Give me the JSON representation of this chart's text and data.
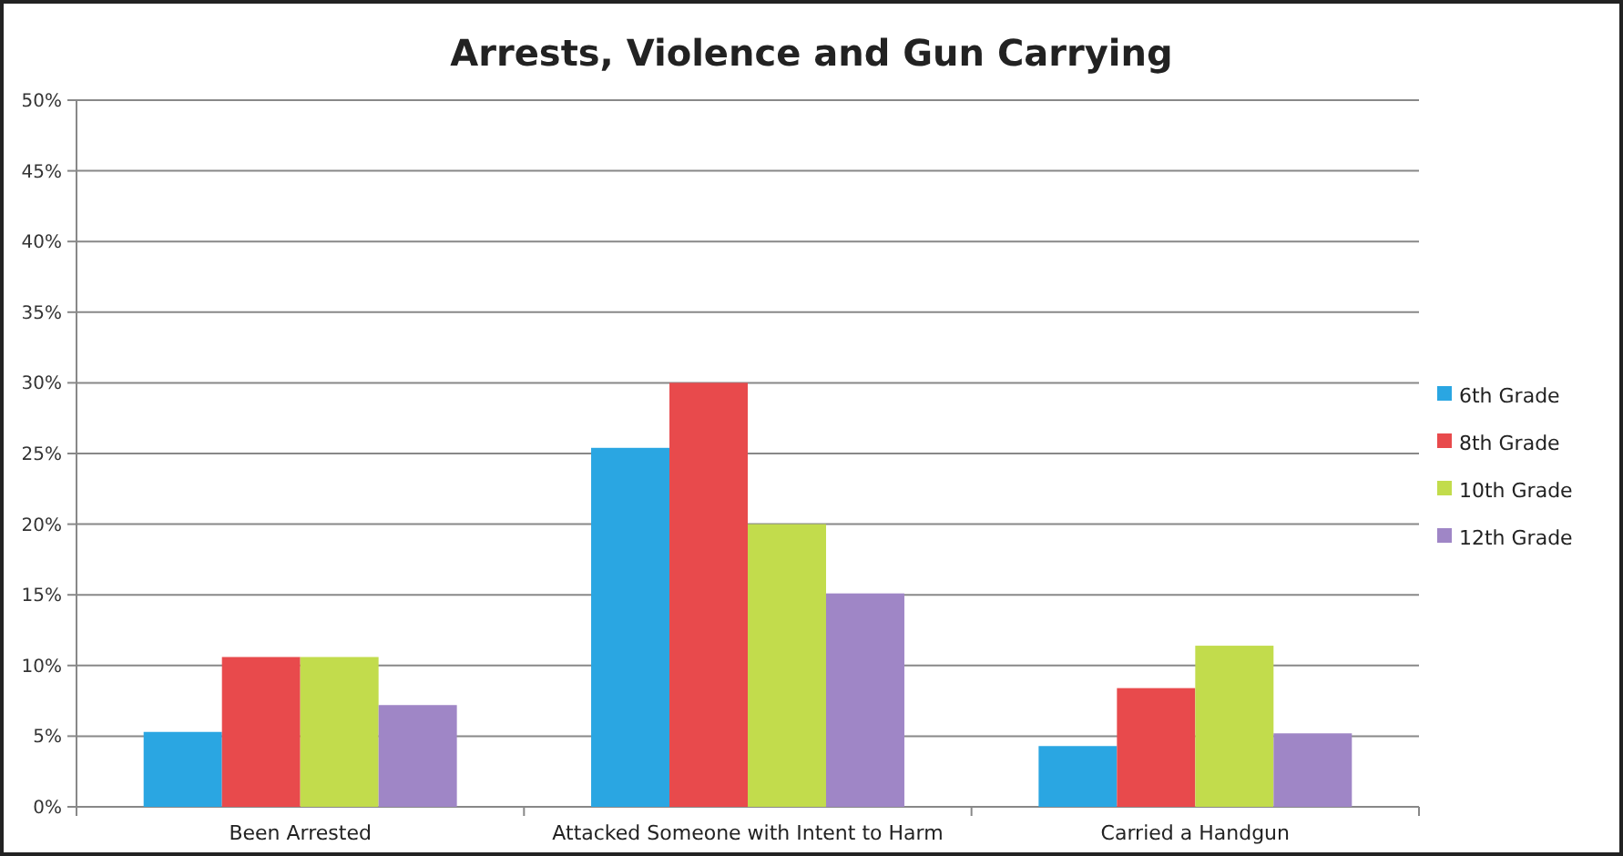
{
  "chart_data": {
    "type": "bar",
    "title": "Arrests, Violence and Gun Carrying",
    "categories": [
      "Been Arrested",
      "Attacked Someone with Intent to Harm",
      "Carried a Handgun"
    ],
    "series": [
      {
        "name": "6th Grade",
        "color": "#2aa6e2",
        "values": [
          5.3,
          25.4,
          4.3
        ]
      },
      {
        "name": "8th Grade",
        "color": "#e84a4c",
        "values": [
          10.6,
          30,
          8.4
        ]
      },
      {
        "name": "10th Grade",
        "color": "#c2dc4c",
        "values": [
          10.6,
          20,
          11.4
        ]
      },
      {
        "name": "12th Grade",
        "color": "#9f86c6",
        "values": [
          7.2,
          15.1,
          5.2
        ]
      }
    ],
    "ylim": [
      0,
      50
    ],
    "yticks": [
      {
        "value": 0,
        "label": "0%"
      },
      {
        "value": 5,
        "label": "5%"
      },
      {
        "value": 10,
        "label": "10%"
      },
      {
        "value": 15,
        "label": "15%"
      },
      {
        "value": 20,
        "label": "20%"
      },
      {
        "value": 25,
        "label": "25%"
      },
      {
        "value": 30,
        "label": "30%"
      },
      {
        "value": 35,
        "label": "35%"
      },
      {
        "value": 40,
        "label": "40%"
      },
      {
        "value": 45,
        "label": "45%"
      },
      {
        "value": 50,
        "label": "50%"
      }
    ],
    "grid": "y",
    "legend": "right"
  }
}
